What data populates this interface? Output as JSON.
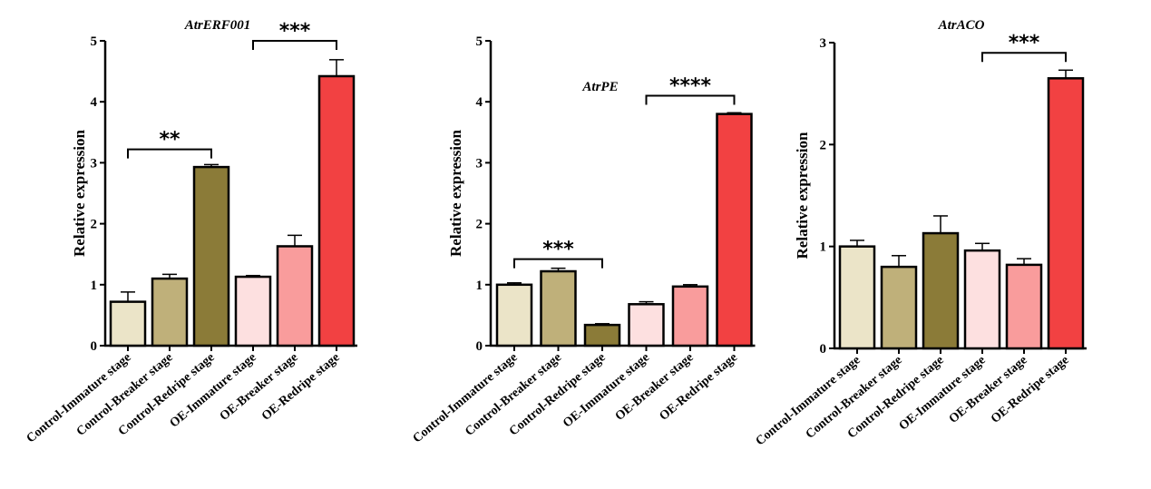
{
  "chart_data": [
    {
      "type": "bar",
      "title": "AtrERF001",
      "xlabel": "",
      "ylabel": "Relative expression",
      "ylim": [
        0,
        5
      ],
      "yticks": [
        0,
        1,
        2,
        3,
        4,
        5
      ],
      "categories": [
        "Control-Immature stage",
        "Control-Breaker stage",
        "Control-Redripe stage",
        "OE-Immature stage",
        "OE-Breaker stage",
        "OE-Redripe stage"
      ],
      "values": [
        0.72,
        1.1,
        2.93,
        1.13,
        1.63,
        4.42
      ],
      "error_upper": [
        0.88,
        1.17,
        2.97,
        1.15,
        1.81,
        4.69
      ],
      "colors": [
        "#ebe4c8",
        "#bfb07a",
        "#8b7b38",
        "#fde0e0",
        "#f99c9c",
        "#f24142"
      ],
      "significance": [
        {
          "from": 0,
          "to": 2,
          "level": 3.22,
          "label": "**"
        },
        {
          "from": 3,
          "to": 5,
          "level": 5.0,
          "label": "***"
        }
      ]
    },
    {
      "type": "bar",
      "title": "AtrPE",
      "xlabel": "",
      "ylabel": "Relative expression",
      "ylim": [
        0,
        5
      ],
      "yticks": [
        0,
        1,
        2,
        3,
        4,
        5
      ],
      "categories": [
        "Control-Immature stage",
        "Control-Breaker stage",
        "Control-Redripe stage",
        "OE-Immature stage",
        "OE-Breaker stage",
        "OE-Redripe stage"
      ],
      "values": [
        1.0,
        1.22,
        0.34,
        0.68,
        0.97,
        3.8
      ],
      "error_upper": [
        1.03,
        1.27,
        0.36,
        0.72,
        1.0,
        3.82
      ],
      "colors": [
        "#ebe4c8",
        "#bfb07a",
        "#8b7b38",
        "#fde0e0",
        "#f99c9c",
        "#f24142"
      ],
      "significance": [
        {
          "from": 0,
          "to": 2,
          "level": 1.42,
          "label": "***"
        },
        {
          "from": 3,
          "to": 5,
          "level": 4.1,
          "label": "****"
        }
      ]
    },
    {
      "type": "bar",
      "title": "AtrACO",
      "xlabel": "",
      "ylabel": "Relative expression",
      "ylim": [
        0,
        3
      ],
      "yticks": [
        0,
        1,
        2,
        3
      ],
      "categories": [
        "Control-Immature stage",
        "Control-Breaker stage",
        "Control-Redripe stage",
        "OE-Immature stage",
        "OE-Breaker stage",
        "OE-Redripe stage"
      ],
      "values": [
        1.0,
        0.8,
        1.13,
        0.96,
        0.82,
        2.65
      ],
      "error_upper": [
        1.06,
        0.91,
        1.3,
        1.03,
        0.88,
        2.73
      ],
      "colors": [
        "#ebe4c8",
        "#bfb07a",
        "#8b7b38",
        "#fde0e0",
        "#f99c9c",
        "#f24142"
      ],
      "significance": [
        {
          "from": 3,
          "to": 5,
          "level": 2.9,
          "label": "***"
        }
      ]
    }
  ]
}
